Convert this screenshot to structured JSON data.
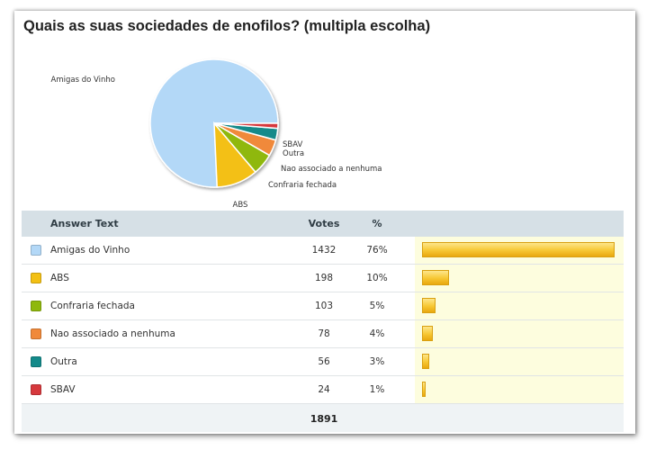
{
  "title": "Quais as suas sociedades de enofilos? (multipla escolha)",
  "table": {
    "headers": {
      "answer": "Answer Text",
      "votes": "Votes",
      "pct": "%"
    },
    "total": "1891"
  },
  "chart_data": {
    "type": "pie",
    "title": "Quais as suas sociedades de enofilos? (multipla escolha)",
    "slices": [
      {
        "label": "Amigas do Vinho",
        "votes": 1432,
        "pct": "76%",
        "color": "#b3d8f7"
      },
      {
        "label": "ABS",
        "votes": 198,
        "pct": "10%",
        "color": "#f3c013"
      },
      {
        "label": "Confraria fechada",
        "votes": 103,
        "pct": "5%",
        "color": "#8fb80d"
      },
      {
        "label": "Nao associado a nenhuma",
        "votes": 78,
        "pct": "4%",
        "color": "#f0893a"
      },
      {
        "label": "Outra",
        "votes": 56,
        "pct": "3%",
        "color": "#138a8a"
      },
      {
        "label": "SBAV",
        "votes": 24,
        "pct": "1%",
        "color": "#d6393d"
      }
    ],
    "total": 1891
  }
}
